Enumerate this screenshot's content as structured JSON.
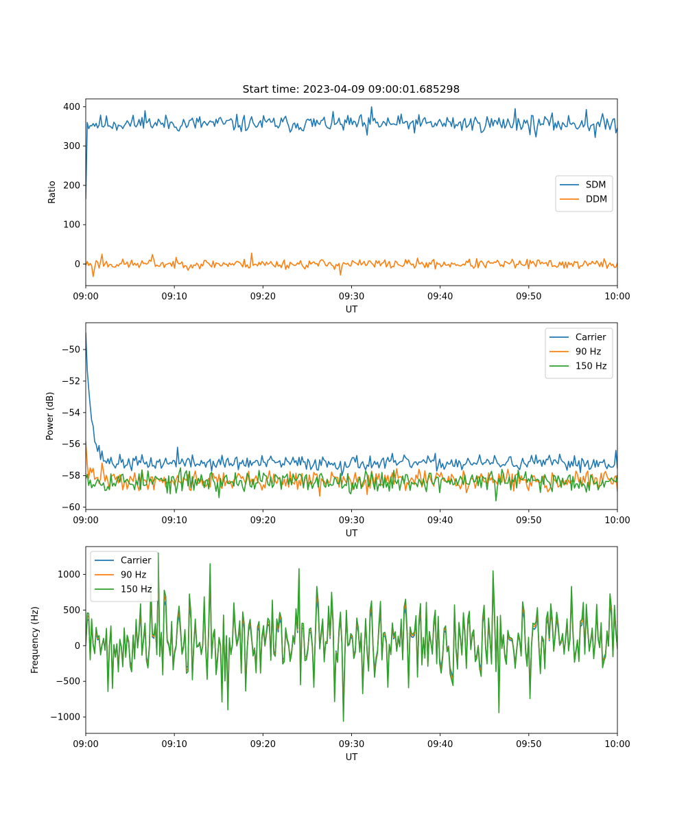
{
  "figure": {
    "title": "Start time: 2023-04-09 09:00:01.685298"
  },
  "colors": {
    "blue": "#1f77b4",
    "orange": "#ff7f0e",
    "green": "#2ca02c"
  },
  "chart_data": [
    {
      "type": "line",
      "xlabel": "UT",
      "ylabel": "Ratio",
      "xlim": [
        0,
        60
      ],
      "ylim": [
        -55,
        420
      ],
      "xticks": [
        0,
        10,
        20,
        30,
        40,
        50,
        60
      ],
      "xtick_labels": [
        "09:00",
        "09:10",
        "09:20",
        "09:30",
        "09:40",
        "09:50",
        "10:00"
      ],
      "yticks": [
        0,
        100,
        200,
        300,
        400
      ],
      "ytick_labels": [
        "0",
        "100",
        "200",
        "300",
        "400"
      ],
      "legend_position": "center-right",
      "grid": false,
      "series": [
        {
          "name": "SDM",
          "color": "#1f77b4",
          "start": 165,
          "start_hold": 0.15,
          "base": 357,
          "noise": 16,
          "spikes": [
            [
              32.2,
              400
            ],
            [
              48.4,
              395
            ],
            [
              56.5,
              393
            ],
            [
              57.5,
              322
            ],
            [
              50.8,
              323
            ],
            [
              31.7,
              328
            ],
            [
              6.7,
              390
            ]
          ],
          "seed": 11
        },
        {
          "name": "DDM",
          "color": "#ff7f0e",
          "start": -5,
          "base": 0,
          "noise": 9,
          "spikes": [
            [
              0.9,
              -32
            ],
            [
              18.7,
              28
            ],
            [
              1.9,
              25
            ],
            [
              7.6,
              24
            ],
            [
              28.8,
              -28
            ]
          ],
          "seed": 23
        }
      ]
    },
    {
      "type": "line",
      "xlabel": "UT",
      "ylabel": "Power (dB)",
      "xlim": [
        0,
        60
      ],
      "ylim": [
        -60.15,
        -48.3
      ],
      "xticks": [
        0,
        10,
        20,
        30,
        40,
        50,
        60
      ],
      "xtick_labels": [
        "09:00",
        "09:10",
        "09:20",
        "09:30",
        "09:40",
        "09:50",
        "10:00"
      ],
      "yticks": [
        -60,
        -58,
        -56,
        -54,
        -52,
        -50
      ],
      "ytick_labels": [
        "−60",
        "−58",
        "−56",
        "−54",
        "−52",
        "−50"
      ],
      "legend_position": "top-right",
      "grid": false,
      "series": [
        {
          "name": "Carrier",
          "color": "#1f77b4",
          "start": -48.7,
          "decay": 0.6,
          "base": -57.2,
          "noise": 0.35,
          "spikes": [
            [
              10.3,
              -56.2
            ],
            [
              59.9,
              -56.4
            ],
            [
              28.9,
              -58.0
            ]
          ],
          "seed": 37
        },
        {
          "name": "90 Hz",
          "color": "#ff7f0e",
          "start": -56.2,
          "decay": 0.3,
          "base": -58.3,
          "noise": 0.45,
          "spikes": [
            [
              1.8,
              -57.2
            ],
            [
              31.8,
              -59.2
            ],
            [
              26.4,
              -59.3
            ]
          ],
          "seed": 41
        },
        {
          "name": "150 Hz",
          "color": "#2ca02c",
          "start": -57.5,
          "decay": 0.2,
          "base": -58.35,
          "noise": 0.5,
          "spikes": [
            [
              46.3,
              -59.6
            ],
            [
              15.1,
              -59.4
            ],
            [
              9.2,
              -59.1
            ]
          ],
          "seed": 53
        }
      ]
    },
    {
      "type": "line",
      "xlabel": "UT",
      "ylabel": "Frequency (Hz)",
      "xlim": [
        0,
        60
      ],
      "ylim": [
        -1230,
        1390
      ],
      "xticks": [
        0,
        10,
        20,
        30,
        40,
        50,
        60
      ],
      "xtick_labels": [
        "09:00",
        "09:10",
        "09:20",
        "09:30",
        "09:40",
        "09:50",
        "10:00"
      ],
      "yticks": [
        -1000,
        -500,
        0,
        500,
        1000
      ],
      "ytick_labels": [
        "−1000",
        "−500",
        "0",
        "500",
        "1000"
      ],
      "legend_position": "top-left",
      "grid": false,
      "series": [
        {
          "name": "Carrier",
          "color": "#1f77b4",
          "scale": 1.0,
          "offset": -85
        },
        {
          "name": "90 Hz",
          "color": "#ff7f0e",
          "scale": 1.0,
          "offset": -40
        },
        {
          "name": "150 Hz",
          "color": "#2ca02c",
          "scale": 1.0,
          "offset": 0
        }
      ],
      "shared_signal": {
        "base": 60,
        "amp": 430,
        "spikes": [
          [
            8.2,
            1300
          ],
          [
            14.1,
            1150
          ],
          [
            24.0,
            1080
          ],
          [
            29.0,
            -1060
          ],
          [
            46.0,
            1050
          ],
          [
            46.6,
            -940
          ],
          [
            3.0,
            -600
          ],
          [
            16.1,
            -900
          ]
        ],
        "seed": 71
      }
    }
  ]
}
